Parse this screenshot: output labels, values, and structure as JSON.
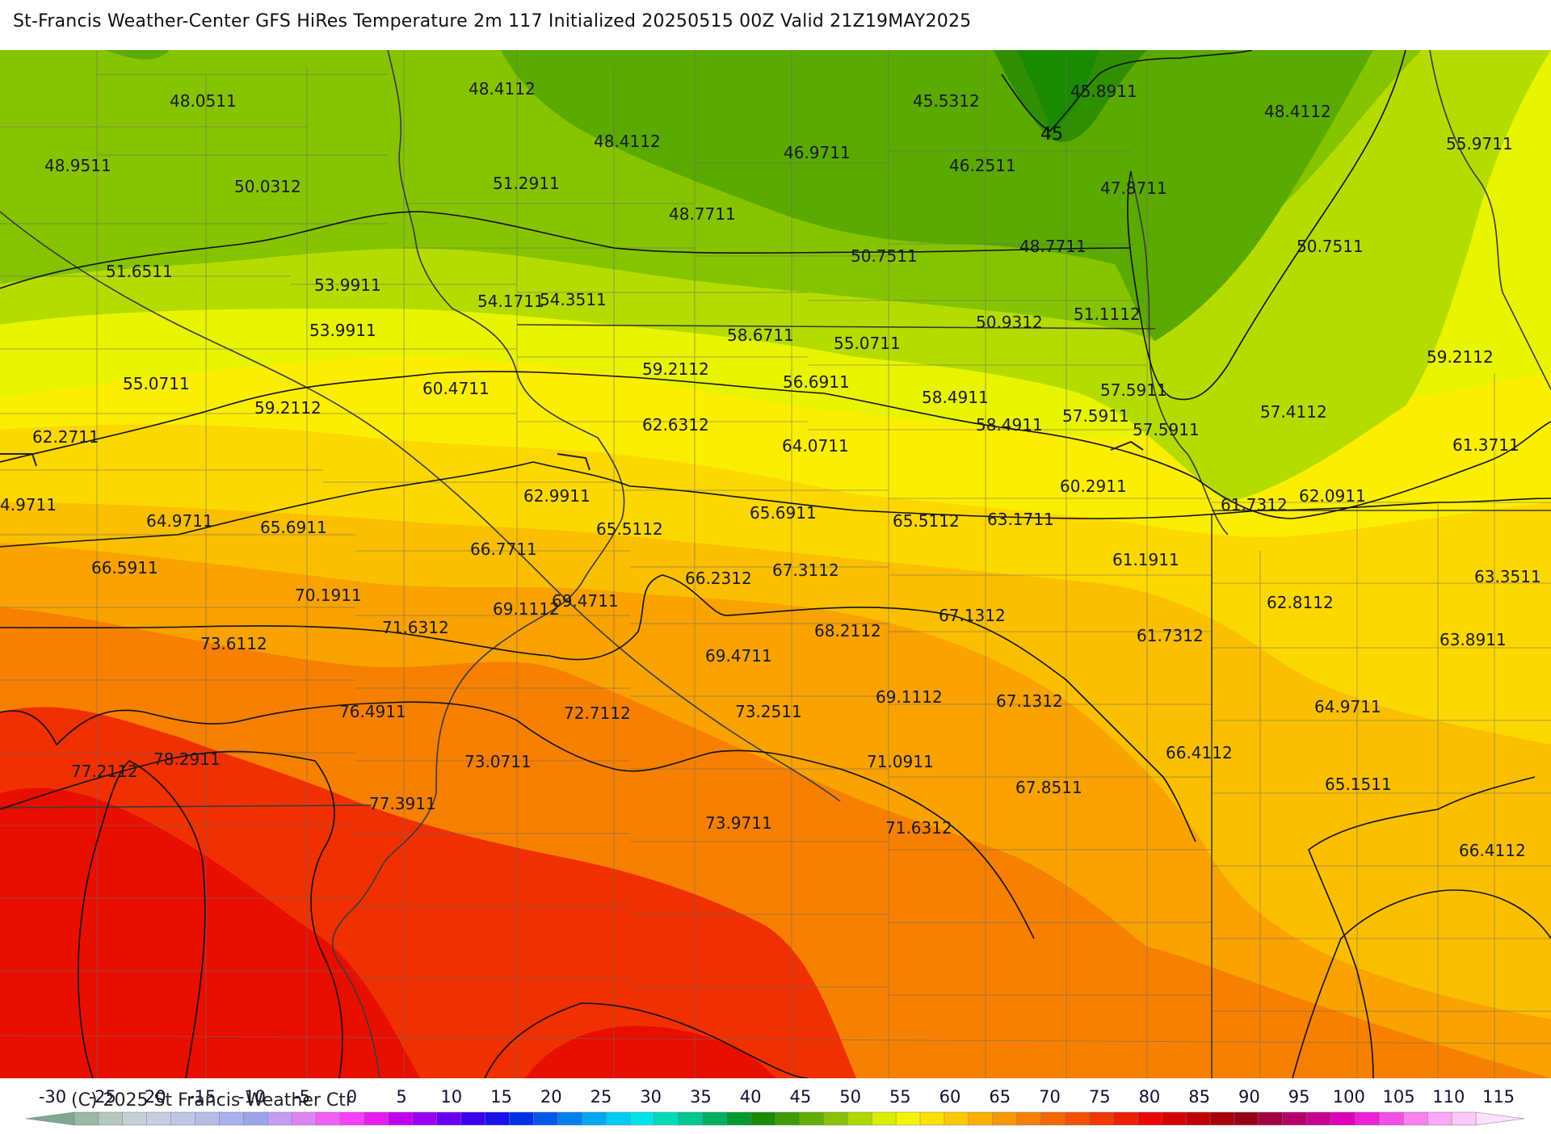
{
  "title": "St-Francis Weather-Center GFS HiRes Temperature 2m  117 Initialized 20250515 00Z Valid 21Z19MAY2025",
  "copyright": "(C) 2025 St Francis Weather Ctr",
  "contour_label": "45",
  "colors": {
    "band_45": "#2f8f00",
    "band_45b": "#1a8a00",
    "band_50": "#5aaa00",
    "band_55": "#86c400",
    "band_60": "#b5dc00",
    "band_65": "#e8f400",
    "band_70": "#fcee00",
    "band_72": "#fcd800",
    "band_75": "#fbbf00",
    "band_80": "#f9a200",
    "band_85": "#f78000",
    "band_90": "#f55a00",
    "band_95": "#f03000",
    "band_100": "#e80e00",
    "contour": "#111111",
    "border": "#3b3b3b",
    "county": "#6b6b6b"
  },
  "temperature_labels": [
    {
      "text": "48.0511"
    },
    {
      "text": "48.4112"
    },
    {
      "text": "48.4112"
    },
    {
      "text": "45.5312"
    },
    {
      "text": "45.8911"
    },
    {
      "text": "48.4112"
    },
    {
      "text": "48.9511"
    },
    {
      "text": "50.0312"
    },
    {
      "text": "51.2911"
    },
    {
      "text": "46.9711"
    },
    {
      "text": "46.2511"
    },
    {
      "text": "47.8711"
    },
    {
      "text": "55.9711"
    },
    {
      "text": "48.7711"
    },
    {
      "text": "50.7511"
    },
    {
      "text": "48.7711"
    },
    {
      "text": "50.7511"
    },
    {
      "text": "51.6511"
    },
    {
      "text": "53.9911"
    },
    {
      "text": "54.1711"
    },
    {
      "text": "54.3511"
    },
    {
      "text": "53.9911"
    },
    {
      "text": "58.6711"
    },
    {
      "text": "55.0711"
    },
    {
      "text": "50.9312"
    },
    {
      "text": "51.1112"
    },
    {
      "text": "59.2112"
    },
    {
      "text": "55.0711"
    },
    {
      "text": "60.4711"
    },
    {
      "text": "59.2112"
    },
    {
      "text": "56.6911"
    },
    {
      "text": "58.4911"
    },
    {
      "text": "57.5911"
    },
    {
      "text": "59.2112"
    },
    {
      "text": "62.6312"
    },
    {
      "text": "57.5911"
    },
    {
      "text": "57.4112"
    },
    {
      "text": "57.5911"
    },
    {
      "text": "58.4911"
    },
    {
      "text": "62.2711"
    },
    {
      "text": "64.0711"
    },
    {
      "text": "61.3711"
    },
    {
      "text": "60.2911"
    },
    {
      "text": "4.9711"
    },
    {
      "text": "62.9911"
    },
    {
      "text": "61.7312"
    },
    {
      "text": "62.0911"
    },
    {
      "text": "64.9711"
    },
    {
      "text": "65.6911"
    },
    {
      "text": "65.5112"
    },
    {
      "text": "65.6911"
    },
    {
      "text": "65.5112"
    },
    {
      "text": "63.1711"
    },
    {
      "text": "66.7711"
    },
    {
      "text": "61.1911"
    },
    {
      "text": "66.5911"
    },
    {
      "text": "66.2312"
    },
    {
      "text": "67.3112"
    },
    {
      "text": "63.3511"
    },
    {
      "text": "70.1911"
    },
    {
      "text": "69.4711"
    },
    {
      "text": "62.8112"
    },
    {
      "text": "69.1112"
    },
    {
      "text": "67.1312"
    },
    {
      "text": "71.6312"
    },
    {
      "text": "73.6112"
    },
    {
      "text": "68.2112"
    },
    {
      "text": "61.7312"
    },
    {
      "text": "63.8911"
    },
    {
      "text": "69.4711"
    },
    {
      "text": "69.1112"
    },
    {
      "text": "67.1312"
    },
    {
      "text": "76.4911"
    },
    {
      "text": "72.7112"
    },
    {
      "text": "73.2511"
    },
    {
      "text": "64.9711"
    },
    {
      "text": "78.2911"
    },
    {
      "text": "71.0911"
    },
    {
      "text": "66.4112"
    },
    {
      "text": "77.2112"
    },
    {
      "text": "73.0711"
    },
    {
      "text": "67.8511"
    },
    {
      "text": "65.1511"
    },
    {
      "text": "77.3911"
    },
    {
      "text": "73.9711"
    },
    {
      "text": "71.6312"
    },
    {
      "text": "66.4112"
    }
  ],
  "legend": {
    "ticks": [
      "-30",
      "-25",
      "-20",
      "-15",
      "-10",
      "-5",
      "0",
      "5",
      "10",
      "15",
      "20",
      "25",
      "30",
      "35",
      "40",
      "45",
      "50",
      "55",
      "60",
      "65",
      "70",
      "75",
      "80",
      "85",
      "90",
      "95",
      "100",
      "105",
      "110",
      "115"
    ],
    "swatches": [
      "#7fa98f",
      "#9bb8a4",
      "#b4c8bb",
      "#c4d0d4",
      "#c8cde0",
      "#c0c6e6",
      "#b6bce8",
      "#aab0ea",
      "#9ea4ec",
      "#c49cf0",
      "#dc84f2",
      "#f060f4",
      "#fa40f6",
      "#e81cf0",
      "#c000f0",
      "#9a00f2",
      "#6a00f0",
      "#3c00ee",
      "#1a10e8",
      "#0030e6",
      "#0058ea",
      "#0080ee",
      "#00a8f2",
      "#00ccf4",
      "#00e4e8",
      "#00dcb8",
      "#00c890",
      "#00b060",
      "#009a30",
      "#1a8a00",
      "#3e9c00",
      "#62ae00",
      "#88c200",
      "#b0d800",
      "#d8ee00",
      "#f4f400",
      "#fce000",
      "#fcc800",
      "#fbb000",
      "#f99800",
      "#f78000",
      "#f56800",
      "#f35000",
      "#f03800",
      "#ec2000",
      "#e80800",
      "#d80000",
      "#c00000",
      "#a80008",
      "#980018",
      "#a00040",
      "#b40068",
      "#c80090",
      "#dc00b8",
      "#ec20d8",
      "#f450e8",
      "#f880f0",
      "#fba8f4",
      "#fcc8f6",
      "#fde0fa"
    ]
  }
}
